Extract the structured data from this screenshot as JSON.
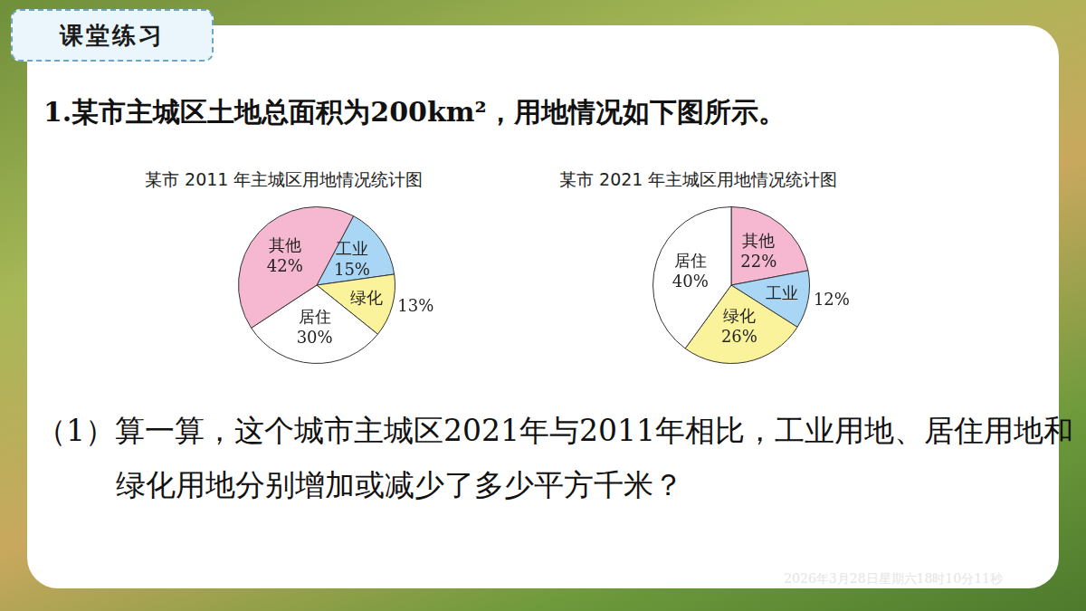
{
  "header": "课堂练习",
  "problem": "1.某市主城区土地总面积为200km²，用地情况如下图所示。",
  "chart_data": [
    {
      "type": "pie",
      "title": "某市 2011 年主城区用地情况统计图",
      "categories": [
        "工业",
        "绿化",
        "居住",
        "其他"
      ],
      "values": [
        15,
        13,
        30,
        42
      ],
      "value_labels": [
        "15%",
        "13%",
        "30%",
        "42%"
      ],
      "colors": [
        "#a9d6f5",
        "#faf39c",
        "#ffffff",
        "#f5b8d0"
      ],
      "data_labels": true
    },
    {
      "type": "pie",
      "title": "某市 2021 年主城区用地情况统计图",
      "categories": [
        "其他",
        "工业",
        "绿化",
        "居住"
      ],
      "values": [
        22,
        12,
        26,
        40
      ],
      "value_labels": [
        "22%",
        "12%",
        "26%",
        "40%"
      ],
      "colors": [
        "#f5b8d0",
        "#a9d6f5",
        "#faf39c",
        "#ffffff"
      ],
      "data_labels": true
    }
  ],
  "question": "（1）算一算，这个城市主城区2021年与2011年相比，工业用地、居住用地和绿化用地分别增加或减少了多少平方千米？",
  "timestamp": "2026年3月28日星期六18时10分11秒"
}
